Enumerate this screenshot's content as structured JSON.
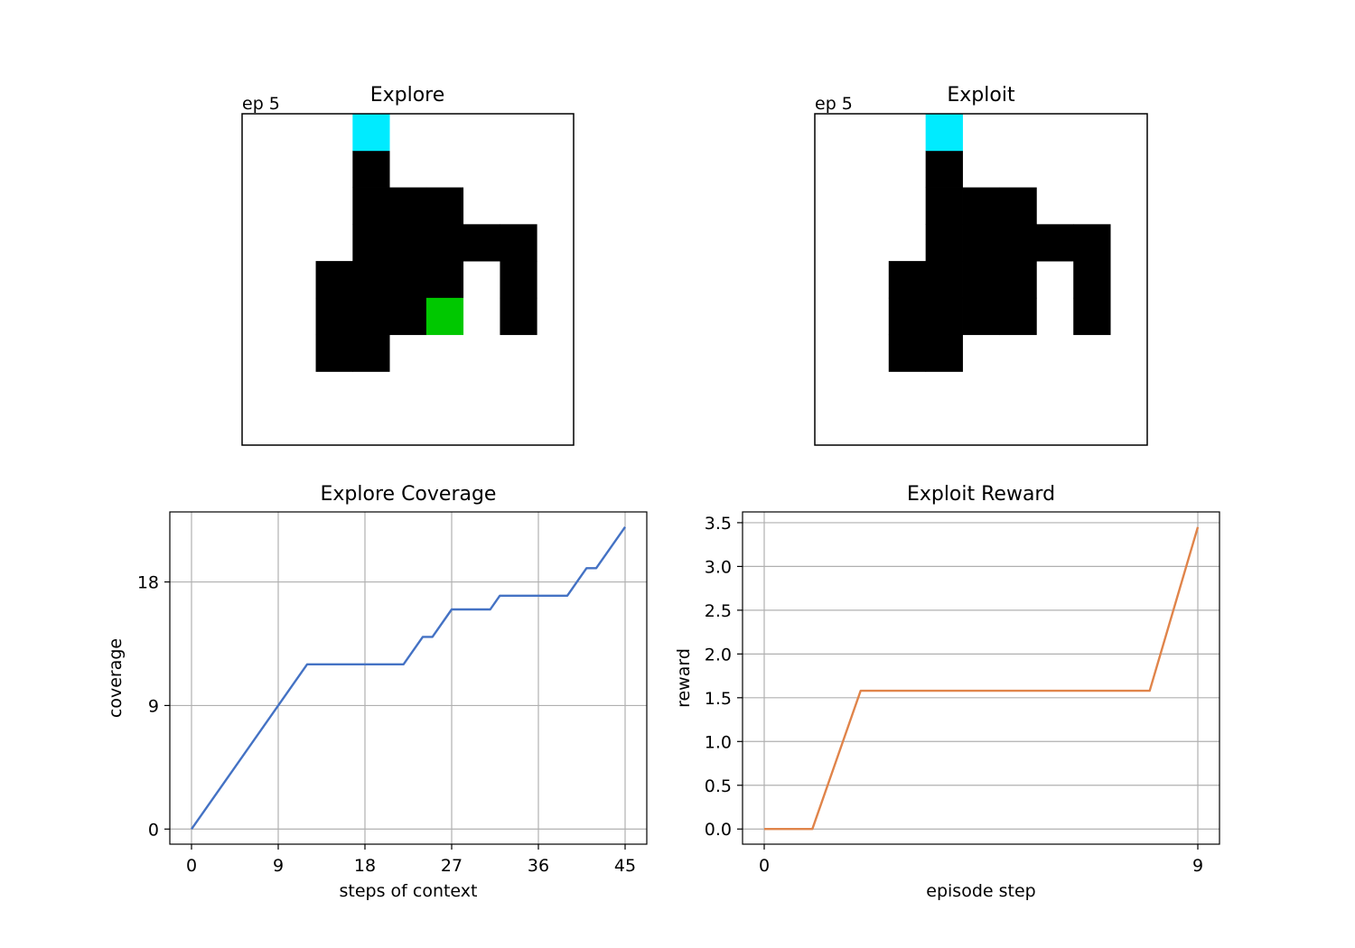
{
  "colors": {
    "wall": "#000000",
    "agent": "#00ebff",
    "goal": "#00c800",
    "explore_line": "#4472c4",
    "exploit_line": "#e0844a",
    "grid": "#b0b0b0"
  },
  "grids": [
    {
      "title": "Explore",
      "episode_label": "ep 5",
      "size": 9,
      "walls": [
        [
          1,
          3
        ],
        [
          2,
          3
        ],
        [
          2,
          4
        ],
        [
          2,
          5
        ],
        [
          3,
          3
        ],
        [
          3,
          4
        ],
        [
          3,
          5
        ],
        [
          3,
          6
        ],
        [
          3,
          7
        ],
        [
          4,
          2
        ],
        [
          4,
          3
        ],
        [
          4,
          4
        ],
        [
          4,
          5
        ],
        [
          4,
          7
        ],
        [
          5,
          2
        ],
        [
          5,
          3
        ],
        [
          5,
          4
        ],
        [
          5,
          7
        ],
        [
          6,
          2
        ],
        [
          6,
          3
        ]
      ],
      "agent": [
        0,
        3
      ],
      "goal": [
        5,
        5
      ]
    },
    {
      "title": "Exploit",
      "episode_label": "ep 5",
      "size": 9,
      "walls": [
        [
          1,
          3
        ],
        [
          2,
          3
        ],
        [
          2,
          4
        ],
        [
          2,
          5
        ],
        [
          3,
          3
        ],
        [
          3,
          4
        ],
        [
          3,
          5
        ],
        [
          3,
          6
        ],
        [
          3,
          7
        ],
        [
          4,
          2
        ],
        [
          4,
          3
        ],
        [
          4,
          4
        ],
        [
          4,
          5
        ],
        [
          4,
          7
        ],
        [
          5,
          2
        ],
        [
          5,
          3
        ],
        [
          5,
          4
        ],
        [
          5,
          5
        ],
        [
          5,
          7
        ],
        [
          6,
          2
        ],
        [
          6,
          3
        ]
      ],
      "agent": [
        0,
        3
      ],
      "goal": null
    }
  ],
  "chart_data": [
    {
      "type": "line",
      "title": "Explore Coverage",
      "xlabel": "steps of context",
      "ylabel": "coverage",
      "xlim": [
        -2.25,
        47.25
      ],
      "ylim": [
        -1.1,
        23.1
      ],
      "xticks": [
        0,
        9,
        18,
        27,
        36,
        45
      ],
      "yticks": [
        0,
        9,
        18
      ],
      "ytick_labels": [
        "0",
        "9",
        "18"
      ],
      "grid": true,
      "series": [
        {
          "x": [
            0,
            12,
            22,
            24,
            25,
            27,
            31,
            32,
            39,
            41,
            42,
            45
          ],
          "y": [
            0,
            12,
            12,
            14,
            14,
            16,
            16,
            17,
            17,
            19,
            19,
            22
          ]
        }
      ]
    },
    {
      "type": "line",
      "title": "Exploit Reward",
      "xlabel": "episode step",
      "ylabel": "reward",
      "xlim": [
        -0.45,
        9.45
      ],
      "ylim": [
        -0.173,
        3.623
      ],
      "xticks": [
        0,
        9
      ],
      "yticks": [
        0,
        0.5,
        1,
        1.5,
        2,
        2.5,
        3,
        3.5
      ],
      "ytick_labels": [
        "0.0",
        "0.5",
        "1.0",
        "1.5",
        "2.0",
        "2.5",
        "3.0",
        "3.5"
      ],
      "grid": true,
      "series": [
        {
          "x": [
            0,
            1,
            2,
            8,
            9
          ],
          "y": [
            0,
            0,
            1.58,
            1.58,
            3.45
          ]
        }
      ]
    }
  ]
}
